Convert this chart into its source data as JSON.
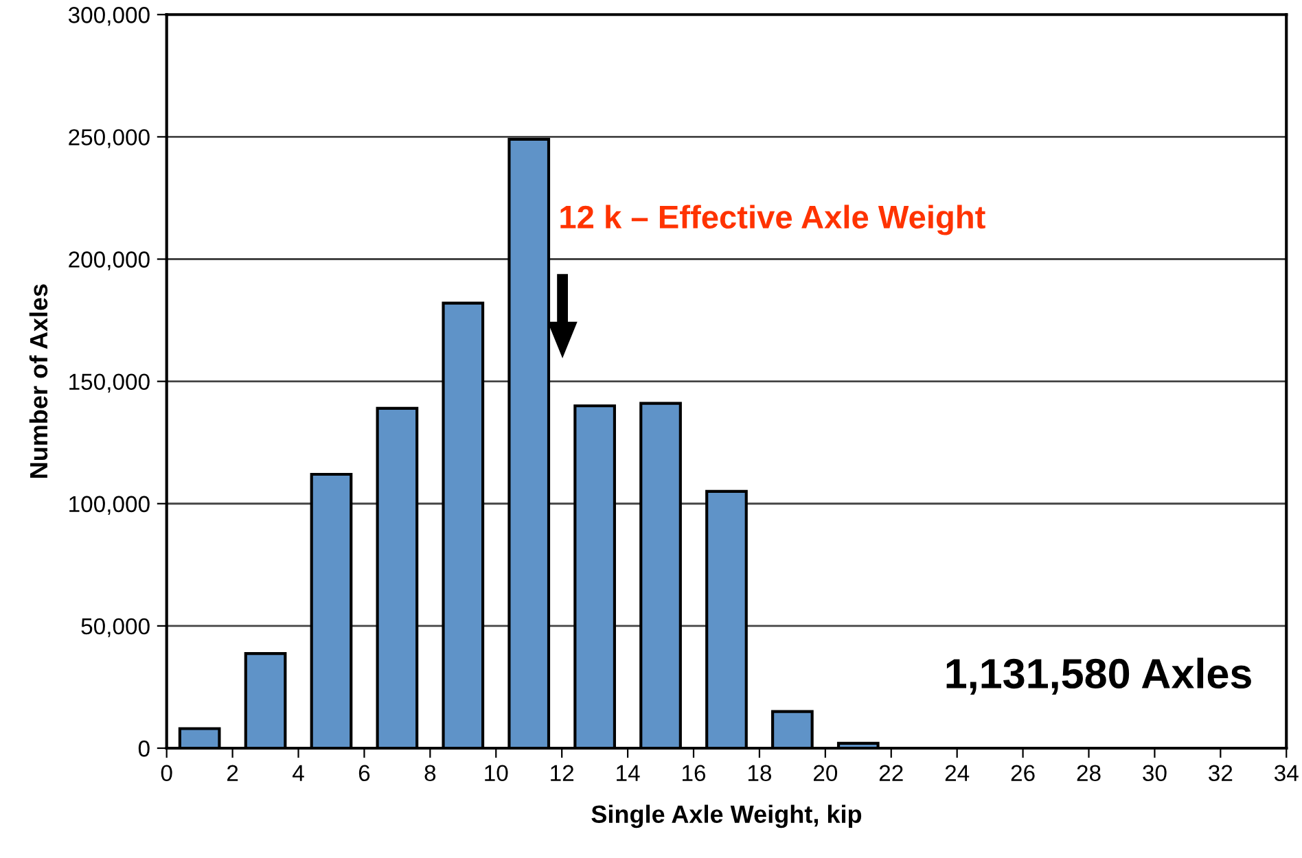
{
  "chart_data": {
    "type": "bar",
    "xlabel": "Single Axle Weight, kip",
    "ylabel": "Number of Axles",
    "x": [
      1,
      3,
      5,
      7,
      9,
      11,
      13,
      15,
      17,
      19,
      21
    ],
    "values": [
      8000,
      38700,
      112000,
      139000,
      182000,
      249000,
      140000,
      141000,
      105000,
      15000,
      2000
    ],
    "color": "#5f93c8",
    "xlim": [
      0,
      34
    ],
    "xticks": [
      0,
      2,
      4,
      6,
      8,
      10,
      12,
      14,
      16,
      18,
      20,
      22,
      24,
      26,
      28,
      30,
      32,
      34
    ],
    "ylim": [
      0,
      300000
    ],
    "yticks": [
      {
        "value": 0,
        "label": "0"
      },
      {
        "value": 50000,
        "label": "50,000"
      },
      {
        "value": 100000,
        "label": "100,000"
      },
      {
        "value": 150000,
        "label": "150,000"
      },
      {
        "value": 200000,
        "label": "200,000"
      },
      {
        "value": 250000,
        "label": "250,000"
      },
      {
        "value": 300000,
        "label": "300,000"
      }
    ],
    "grid": "y",
    "annotations": [
      "12 k – Effective Axle Weight",
      "1,131,580 Axles"
    ]
  }
}
